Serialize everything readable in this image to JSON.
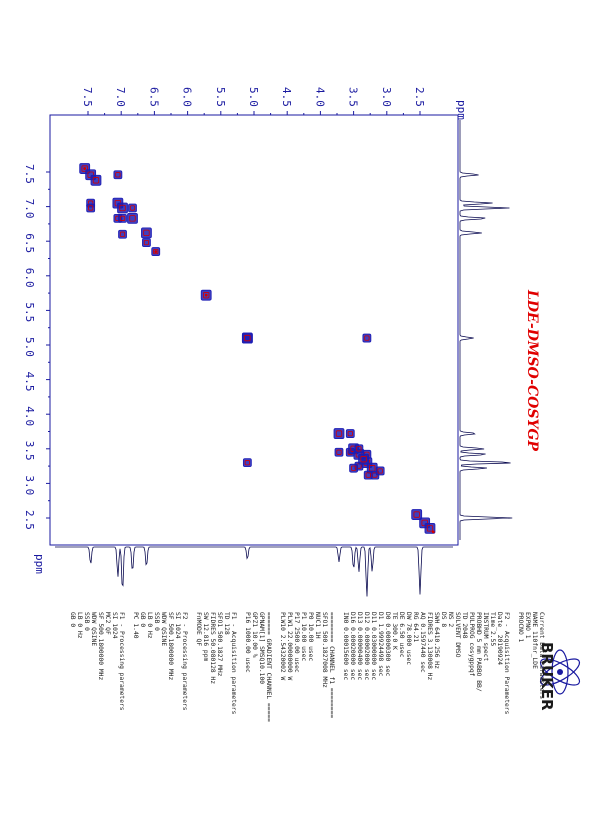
{
  "spectrum": {
    "title": "LDE-DMSO-COSYGP",
    "ppm_label": "ppm",
    "ticks": [
      "7.5",
      "7.0",
      "6.5",
      "6.0",
      "5.5",
      "5.0",
      "4.5",
      "4.0",
      "3.5",
      "3.0",
      "2.5"
    ],
    "colors": {
      "axis": "#1a1aa0",
      "positive": "#1c1cb4",
      "negative": "#d40000",
      "trace": "#0a0a50"
    }
  },
  "chart_data": {
    "type": "scatter",
    "title": "LDE-DMSO-COSYGP",
    "xlabel": "ppm",
    "ylabel": "ppm",
    "xlim": [
      7.6,
      2.1
    ],
    "ylim": [
      7.6,
      2.1
    ],
    "series": [
      {
        "x": [
          7.55,
          7.46,
          7.46,
          7.05,
          7.05,
          7.46,
          7.38,
          6.98,
          7.05,
          6.98,
          6.98,
          6.83,
          6.83,
          6.62,
          6.62,
          6.48,
          5.72,
          5.1,
          5.1,
          3.72,
          3.72,
          3.55,
          3.55,
          3.5,
          3.42,
          3.3,
          3.42,
          3.3,
          3.22,
          3.18,
          3.35,
          3.28,
          3.1,
          2.55,
          2.43,
          2.35,
          3.3,
          5.1,
          3.5,
          3.42
        ],
        "y": [
          7.55,
          7.46,
          7.05,
          7.46,
          7.05,
          6.98,
          7.38,
          6.98,
          6.83,
          6.83,
          6.6,
          6.83,
          6.98,
          6.62,
          6.48,
          6.35,
          5.72,
          5.1,
          3.3,
          3.72,
          3.45,
          3.72,
          3.45,
          3.5,
          3.42,
          3.3,
          3.25,
          3.42,
          3.22,
          3.12,
          3.35,
          3.12,
          3.18,
          2.55,
          2.43,
          2.35,
          5.1,
          5.1,
          3.22,
          3.5
        ]
      }
    ]
  },
  "logo": {
    "name": "BRUKER"
  },
  "params": [
    "Current Data Parameters",
    "NAME       110fnr_LDE",
    "EXPNO              1",
    "PROCNO             1",
    "",
    "F2 - Acquisition Parameters",
    "Date_          20190924",
    "Time               2.55",
    "INSTRUM          spect",
    "PROBHD  5 mm PABBO BB/",
    "PULPROG        cosygppqf",
    "TD                2048",
    "SOLVENT          DMSO",
    "NS                   2",
    "DS                   8",
    "SWH           6410.256 Hz",
    "FIDRES        3.130008 Hz",
    "AQ           0.1597440 sec",
    "RG                 64.21",
    "DW                78.000 usec",
    "DE                 6.50 usec",
    "TE                300.0 K",
    "D0           0.00000300 sec",
    "D1           1.99924498 sec",
    "D11          0.03000000 sec",
    "D12          0.00002000 sec",
    "D13          0.00000400 sec",
    "D16          0.00020000 sec",
    "IN0          0.00015600 sec",
    "",
    "======== CHANNEL f1 ========",
    "SFO1        500.1827008 MHz",
    "NUC1                  1H",
    "P0                10.00 usec",
    "P1                10.00 usec",
    "P17             2500.00 usec",
    "PLW1          22.00000000 W",
    "PLW10          2.54320002 W",
    "",
    "====== GRADIENT CHANNEL =====",
    "GPNAM[1]         SMSQ10.100",
    "GPZ1               10.00 %",
    "P16              1000.00 usec",
    "",
    "F1 - Acquisition parameters",
    "TD                  128",
    "SFO1           500.1827 MHz",
    "FIDRES        50.080128 Hz",
    "SW                12.816 ppm",
    "FnMODE               QF",
    "",
    "F2 - Processing parameters",
    "SI                 1024",
    "SF          500.1800000 MHz",
    "WDW               QSINE",
    "SSB                   0",
    "LB                 0 Hz",
    "GB                    0",
    "PC                 1.40",
    "",
    "F1 - Processing parameters",
    "SI                 1024",
    "MC2                  QF",
    "SF          500.1800000 MHz",
    "WDW               QSINE",
    "SSB                   0",
    "LB                 0 Hz",
    "GB                    0"
  ]
}
